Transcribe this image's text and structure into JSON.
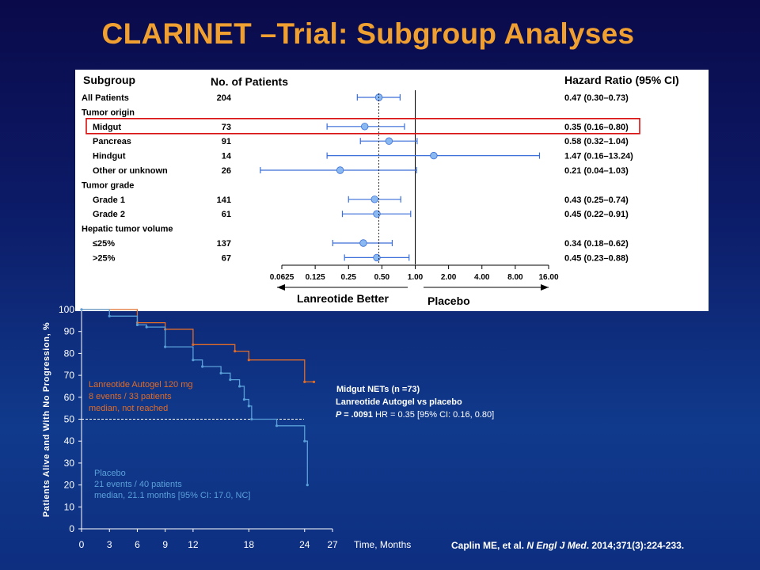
{
  "title": "CLARINET –Trial: Subgroup Analyses",
  "forest": {
    "headers": {
      "subgroup": "Subgroup",
      "patients": "No. of Patients",
      "hr": "Hazard Ratio (95% CI)"
    },
    "rows": [
      {
        "label": "All Patients",
        "indent": 0,
        "n": "204",
        "hr": 0.47,
        "lo": 0.3,
        "hi": 0.73,
        "text": "0.47 (0.30–0.73)"
      },
      {
        "label": "Tumor origin",
        "indent": 0,
        "header": true
      },
      {
        "label": "Midgut",
        "indent": 1,
        "n": "73",
        "hr": 0.35,
        "lo": 0.16,
        "hi": 0.8,
        "text": "0.35 (0.16–0.80)",
        "highlight": true
      },
      {
        "label": "Pancreas",
        "indent": 1,
        "n": "91",
        "hr": 0.58,
        "lo": 0.32,
        "hi": 1.04,
        "text": "0.58 (0.32–1.04)"
      },
      {
        "label": "Hindgut",
        "indent": 1,
        "n": "14",
        "hr": 1.47,
        "lo": 0.16,
        "hi": 13.24,
        "text": "1.47 (0.16–13.24)"
      },
      {
        "label": "Other or unknown",
        "indent": 1,
        "n": "26",
        "hr": 0.21,
        "lo": 0.04,
        "hi": 1.03,
        "text": "0.21 (0.04–1.03)"
      },
      {
        "label": "Tumor grade",
        "indent": 0,
        "header": true
      },
      {
        "label": "Grade 1",
        "indent": 1,
        "n": "141",
        "hr": 0.43,
        "lo": 0.25,
        "hi": 0.74,
        "text": "0.43 (0.25–0.74)"
      },
      {
        "label": "Grade 2",
        "indent": 1,
        "n": "61",
        "hr": 0.45,
        "lo": 0.22,
        "hi": 0.91,
        "text": "0.45 (0.22–0.91)"
      },
      {
        "label": "Hepatic tumor volume",
        "indent": 0,
        "header": true
      },
      {
        "label": "≤25%",
        "indent": 1,
        "n": "137",
        "hr": 0.34,
        "lo": 0.18,
        "hi": 0.62,
        "text": "0.34 (0.18–0.62)"
      },
      {
        "label": ">25%",
        "indent": 1,
        "n": "67",
        "hr": 0.45,
        "lo": 0.23,
        "hi": 0.88,
        "text": "0.45 (0.23–0.88)"
      }
    ],
    "axis_ticks": [
      "0.0625",
      "0.125",
      "0.25",
      "0.50",
      "1.00",
      "2.00",
      "4.00",
      "8.00",
      "16.00"
    ],
    "arrow_left": "Lanreotide Better",
    "arrow_right": "Placebo",
    "line_color": "#3a6ed8",
    "dot_color": "#8ab8f0"
  },
  "chart_data": [
    {
      "type": "forest",
      "scale": "log2",
      "xlim": [
        0.0625,
        16
      ],
      "reference": 1,
      "categories": [
        "All Patients",
        "Midgut",
        "Pancreas",
        "Hindgut",
        "Other or unknown",
        "Grade 1",
        "Grade 2",
        "≤25%",
        ">25%"
      ],
      "hr": [
        0.47,
        0.35,
        0.58,
        1.47,
        0.21,
        0.43,
        0.45,
        0.34,
        0.45
      ],
      "ci_low": [
        0.3,
        0.16,
        0.32,
        0.16,
        0.04,
        0.25,
        0.22,
        0.18,
        0.23
      ],
      "ci_high": [
        0.73,
        0.8,
        1.04,
        13.24,
        1.03,
        0.74,
        0.91,
        0.62,
        0.88
      ]
    },
    {
      "type": "line",
      "step": true,
      "xlabel": "Time, Months",
      "ylabel": "Patients Alive and With No Progression, %",
      "xlim": [
        0,
        27
      ],
      "ylim": [
        0,
        100
      ],
      "xticks": [
        "0",
        "3",
        "6",
        "9",
        "12",
        "18",
        "24",
        "27"
      ],
      "yticks": [
        "0",
        "10",
        "20",
        "30",
        "40",
        "50",
        "60",
        "70",
        "80",
        "90",
        "100"
      ],
      "reference_y": 50,
      "series": [
        {
          "name": "Lanreotide Autogel 120 mg",
          "color": "#e06c28",
          "x": [
            0,
            6,
            9,
            12,
            16.5,
            18,
            24,
            25
          ],
          "y": [
            100,
            94,
            91,
            84,
            81,
            77,
            67,
            67
          ]
        },
        {
          "name": "Placebo",
          "color": "#5aa0d8",
          "x": [
            0,
            3,
            6,
            7,
            9,
            12,
            13,
            15,
            16,
            17,
            17.5,
            18,
            18.3,
            21,
            24,
            24.3
          ],
          "y": [
            100,
            97,
            93,
            92,
            83,
            77,
            74,
            71,
            68,
            65,
            59,
            56,
            50,
            47,
            40,
            20
          ]
        }
      ]
    }
  ],
  "km": {
    "legend_lan": [
      "Lanreotide Autogel 120 mg",
      "8 events / 33 patients",
      "median, not reached"
    ],
    "legend_pla": [
      "Placebo",
      "21 events / 40 patients",
      "median, 21.1 months [95% CI: 17.0, NC]"
    ],
    "annotation": {
      "line1": "Midgut NETs (n =73)",
      "line2": "Lanreotide Autogel vs placebo",
      "p_label": "P = ",
      "p_value": ".0091",
      "rest": " HR = 0.35 [95% CI: 0.16, 0.80]"
    }
  },
  "citation": {
    "authors": "Caplin ME, et al. ",
    "journal": "N Engl J Med",
    "rest": ". 2014;371(3):224-233."
  }
}
